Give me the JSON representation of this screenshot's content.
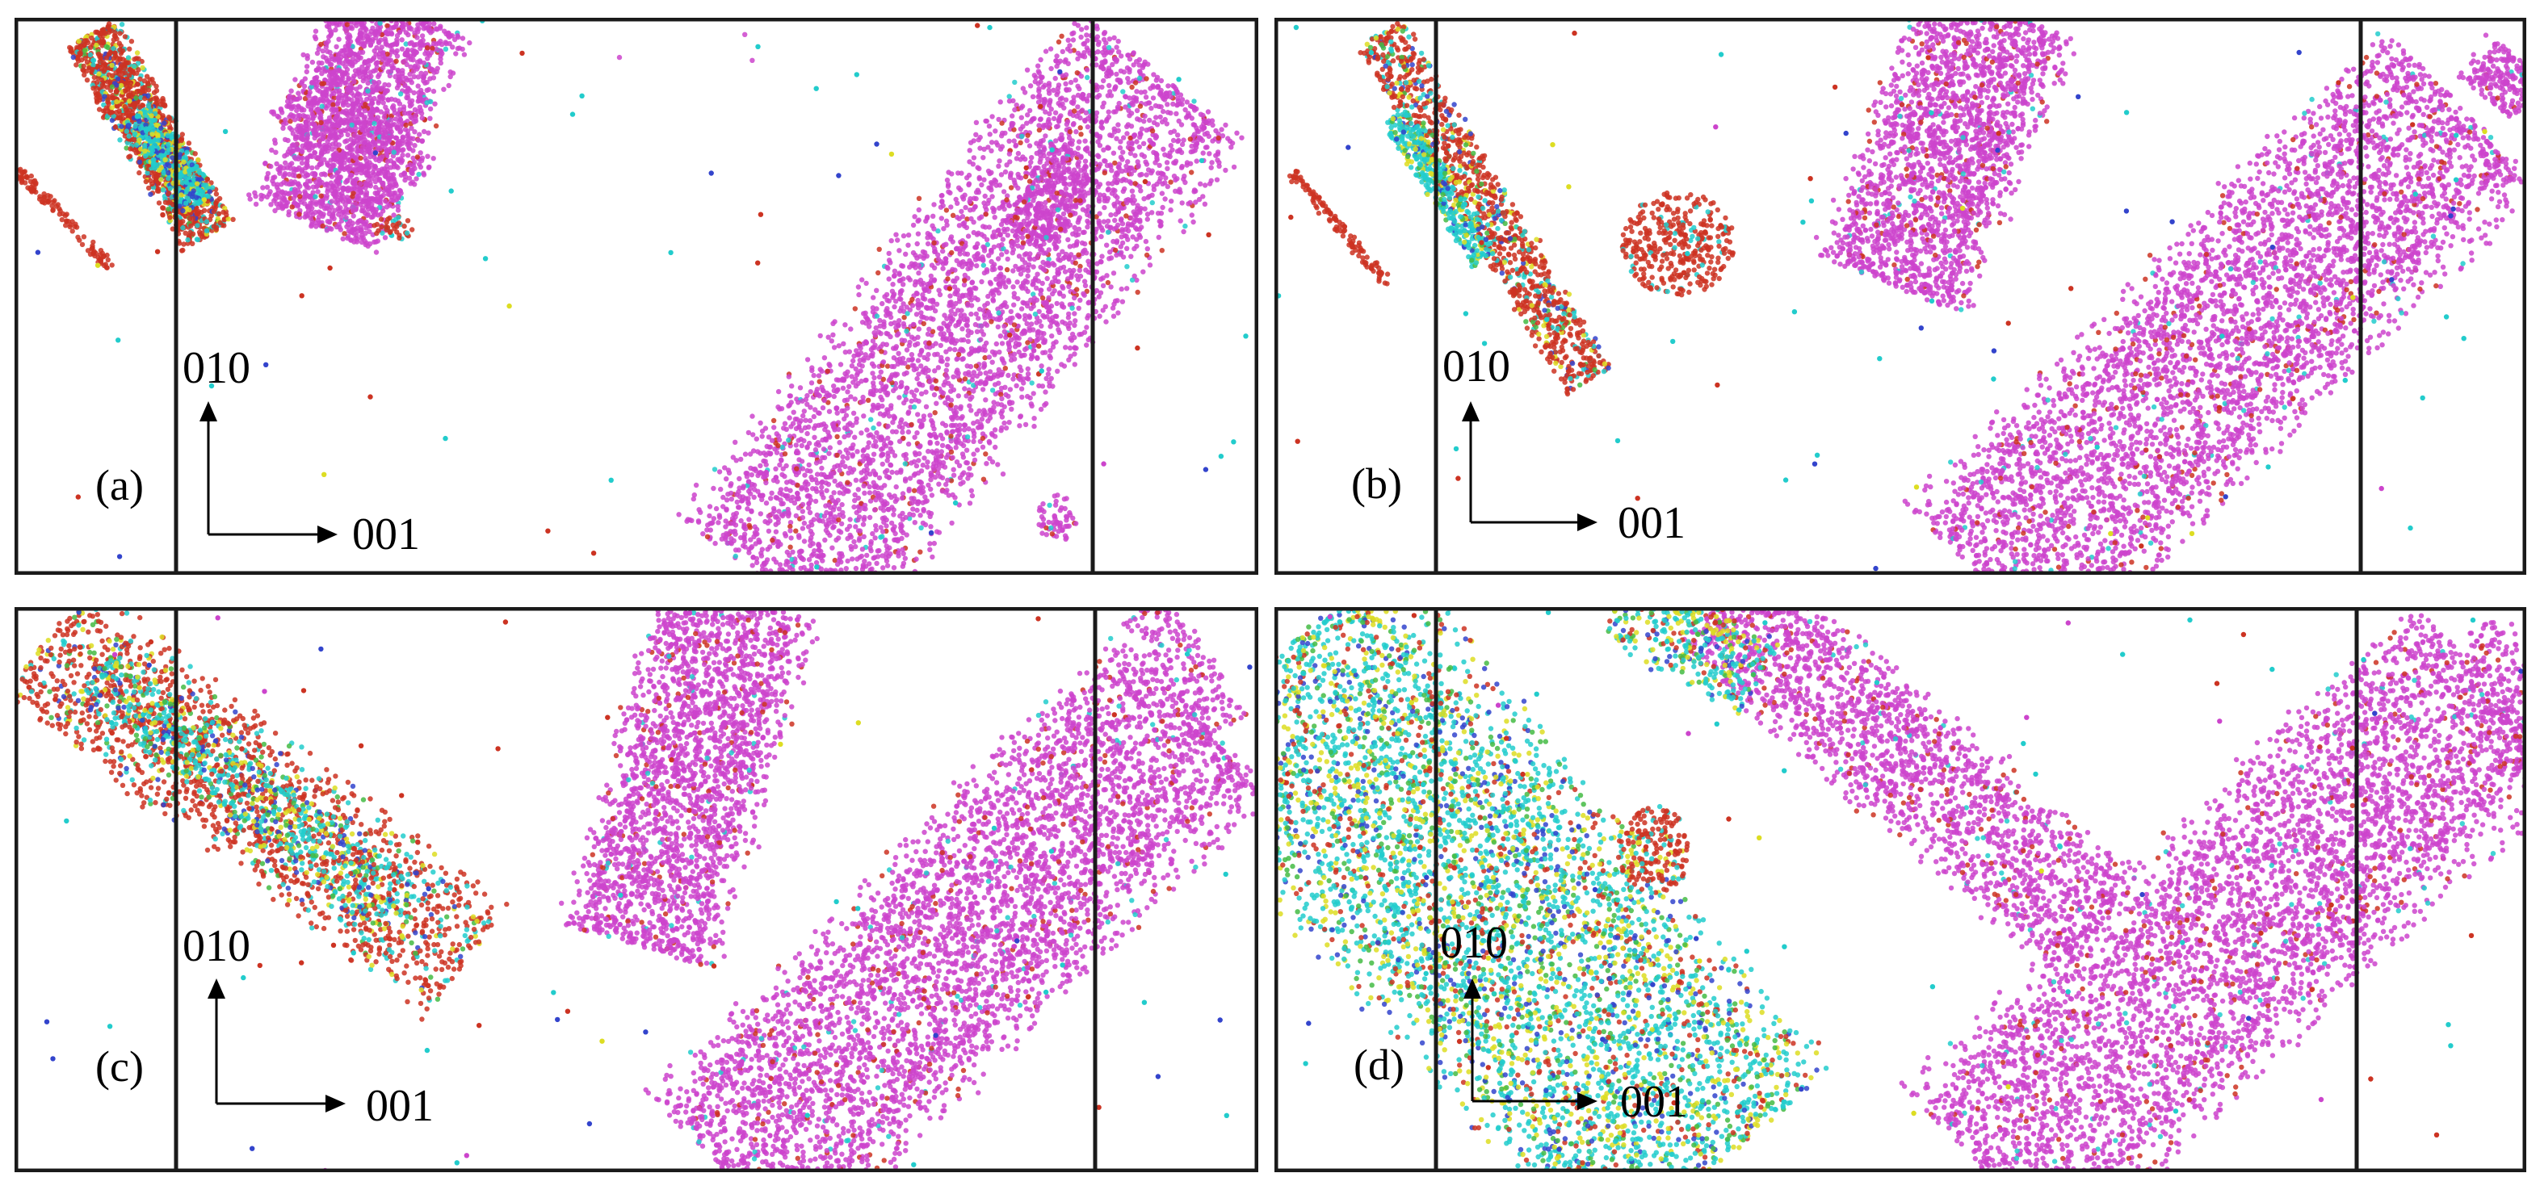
{
  "figure": {
    "panels": [
      {
        "id": "a",
        "label": "(a)",
        "axis_vertical": "010",
        "axis_horizontal": "001"
      },
      {
        "id": "b",
        "label": "(b)",
        "axis_vertical": "010",
        "axis_horizontal": "001"
      },
      {
        "id": "c",
        "label": "(c)",
        "axis_vertical": "010",
        "axis_horizontal": "001"
      },
      {
        "id": "d",
        "label": "(d)",
        "axis_vertical": "010",
        "axis_horizontal": "001"
      }
    ],
    "atom_colors": {
      "magenta": "#cc44cc",
      "red": "#cc3322",
      "cyan": "#22cccc",
      "yellow": "#dddd22",
      "blue": "#3344cc",
      "green": "#44bb44"
    }
  }
}
